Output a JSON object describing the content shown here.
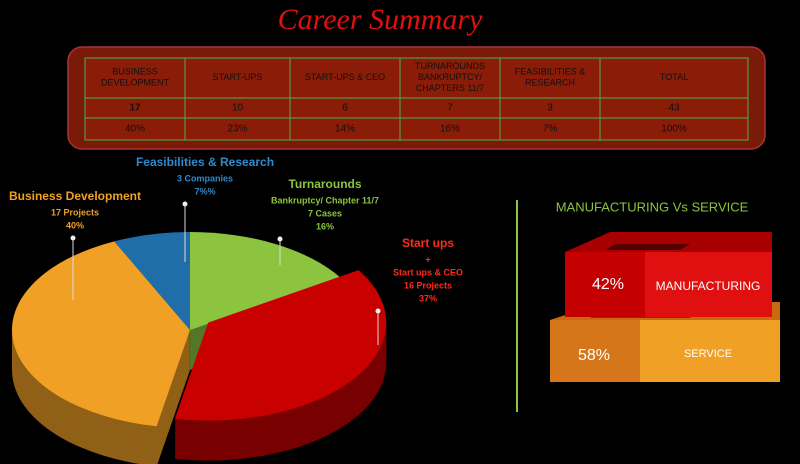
{
  "header": {
    "title": "Career Summary"
  },
  "table": {
    "columns": [
      "BUSINESS DEVELOPMENT",
      "START-UPS",
      "START-UPS & CEO",
      "TURNAROUNDS BANKRUPTCY/ CHAPTERS 11/7",
      "FEASIBILITIES & RESEARCH",
      "TOTAL"
    ],
    "rows": [
      [
        17,
        10,
        6,
        7,
        3,
        43
      ],
      [
        "40%",
        "23%",
        "14%",
        "16%",
        "7%",
        "100%"
      ]
    ]
  },
  "chart_data": {
    "type": "pie",
    "categories": [
      "Turnarounds",
      "Start ups",
      "Business Development",
      "Feasibilities & Research"
    ],
    "details": [
      [
        "Bankruptcy/ Chapter 11/7",
        "7 Cases"
      ],
      [
        "+",
        "Start ups & CEO",
        "16 Projects"
      ],
      [
        "17 Projects"
      ],
      [
        "3 Companies"
      ]
    ],
    "values": [
      16,
      37,
      40,
      7
    ],
    "value_labels": [
      "16%",
      "37%",
      "40%",
      "7%%"
    ],
    "colors": [
      "#8cc43f",
      "#c80000",
      "#f0a024",
      "#1f6eaa"
    ],
    "label_colors": [
      "#8cc43f",
      "#ff2a1a",
      "#f0a024",
      "#2e8ad0"
    ]
  },
  "manufacturing_vs_service": {
    "title": "MANUFACTURING Vs SERVICE",
    "items": [
      {
        "label": "MANUFACTURING",
        "value_label": "42%"
      },
      {
        "label": "SERVICE",
        "value_label": "58%"
      }
    ]
  }
}
